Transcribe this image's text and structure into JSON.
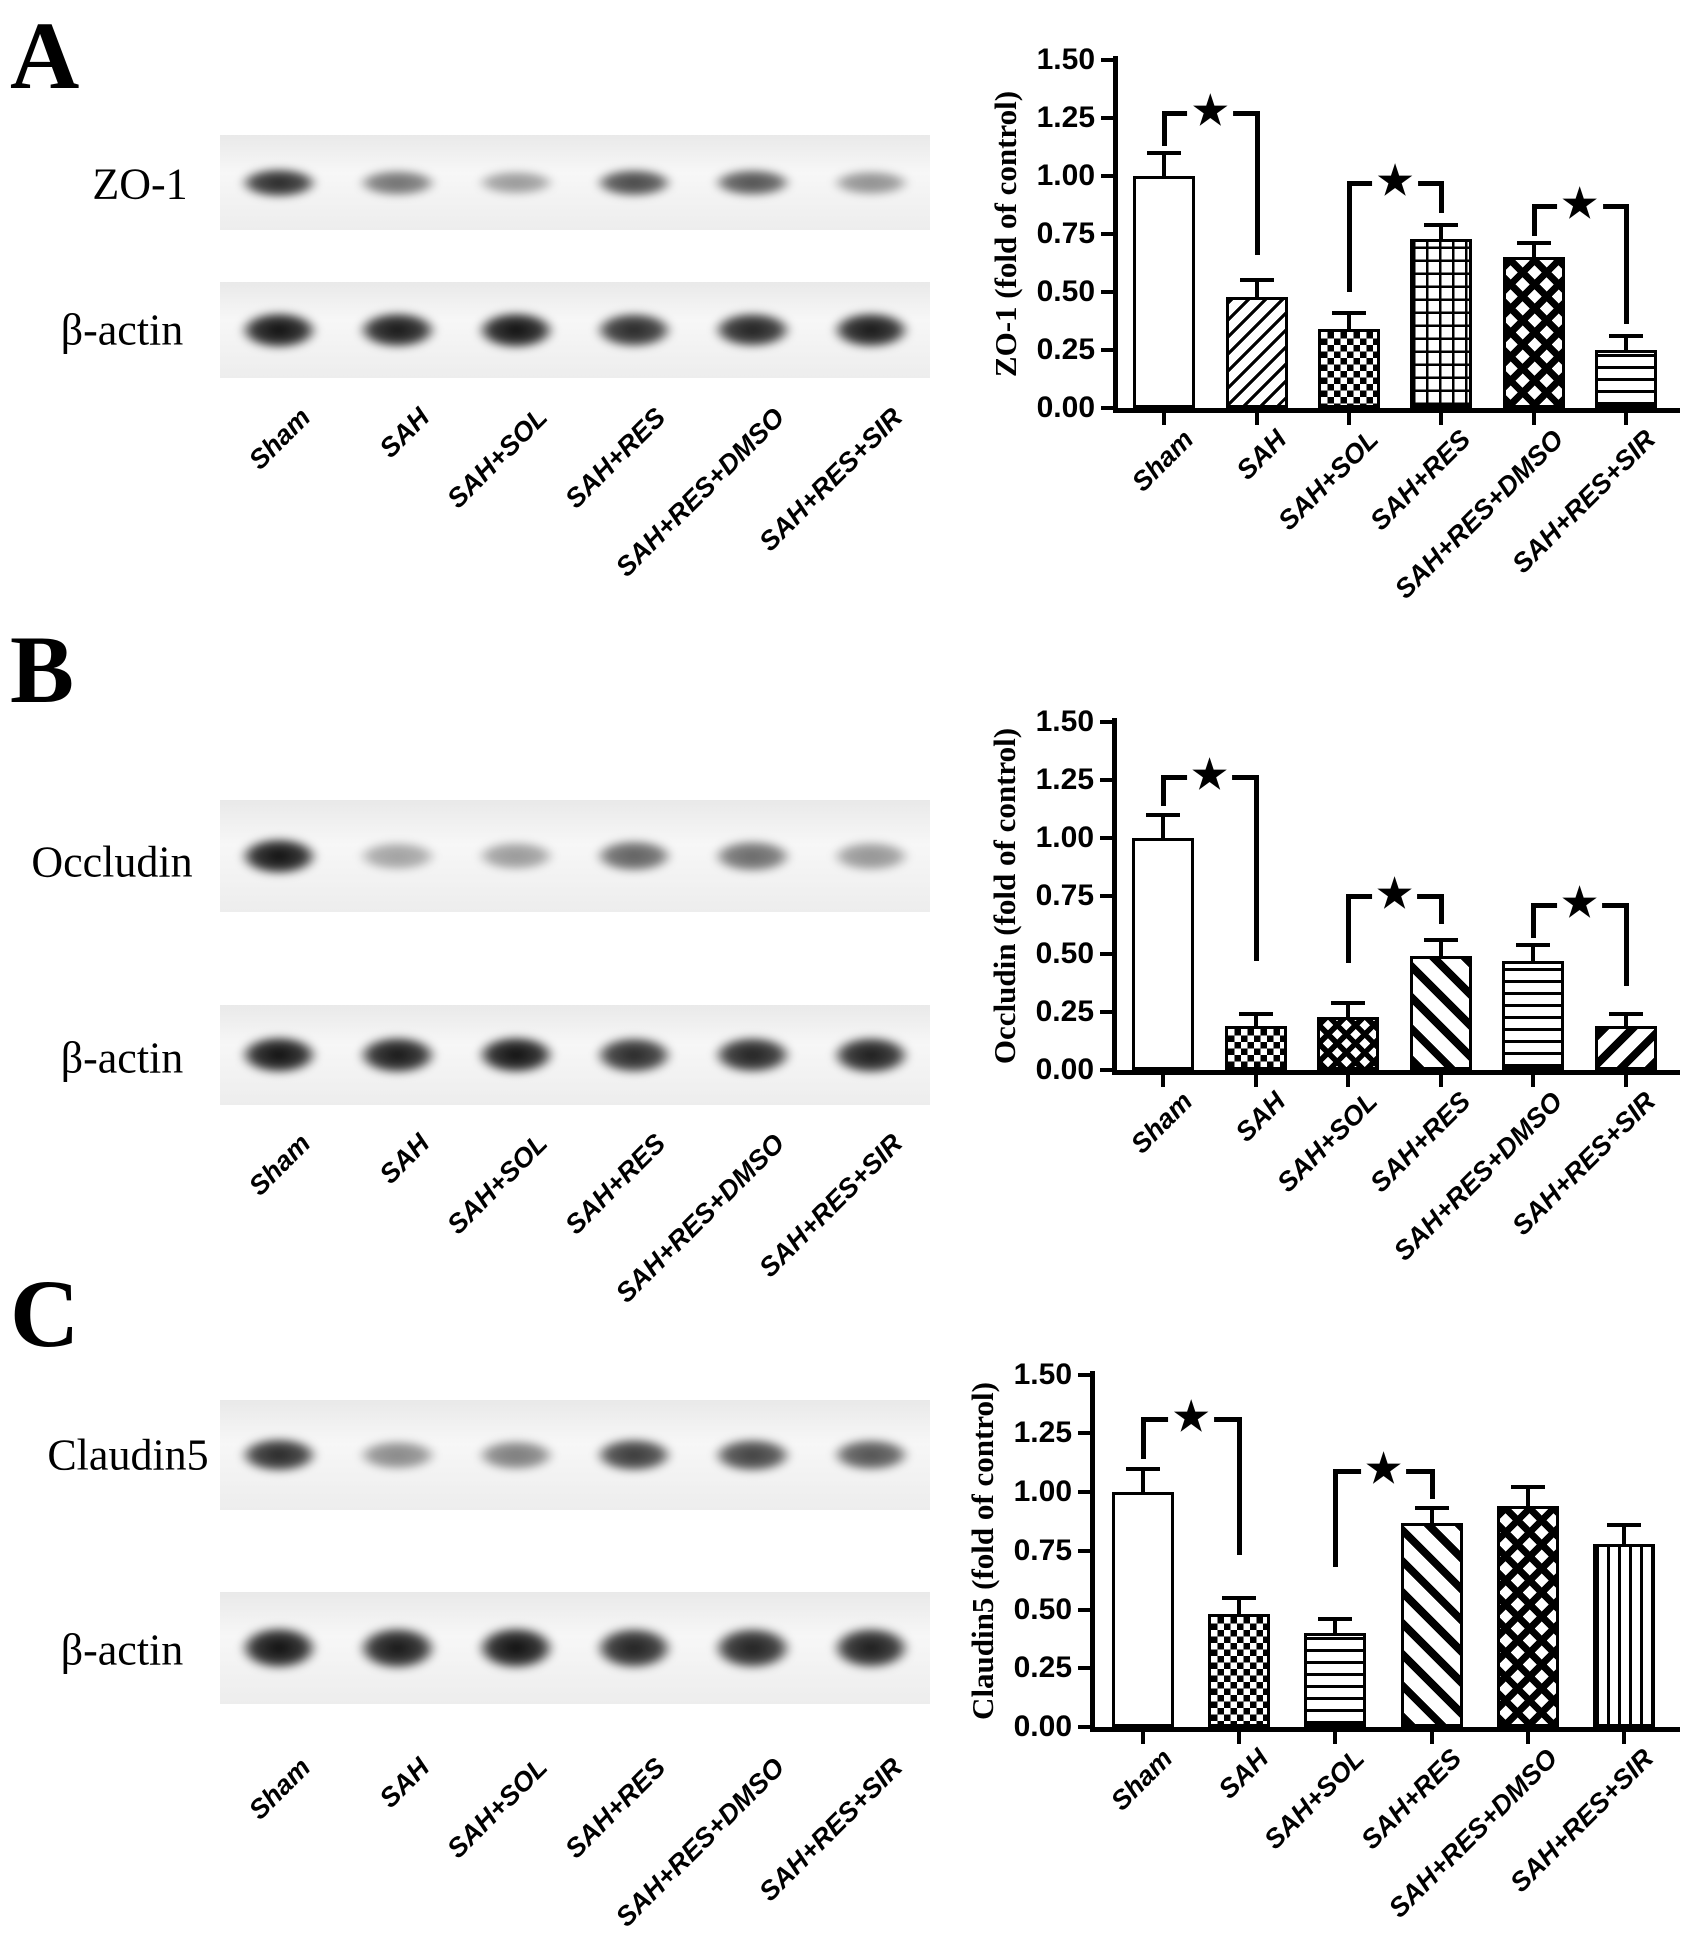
{
  "figure": {
    "ink_color": "#000000",
    "blot_bg_color": "#ededed",
    "panels": [
      {
        "letter": "A",
        "protein": "ZO-1",
        "blot_rows": [
          {
            "label": "ZO-1",
            "band_intensities": [
              0.85,
              0.55,
              0.38,
              0.72,
              0.68,
              0.42
            ]
          },
          {
            "label": "β-actin",
            "band_intensities": [
              0.95,
              0.92,
              0.95,
              0.85,
              0.88,
              0.92
            ]
          }
        ],
        "lane_labels": [
          "Sham",
          "SAH",
          "SAH+SOL",
          "SAH+RES",
          "SAH+RES+DMSO",
          "SAH+RES+SIR"
        ]
      },
      {
        "letter": "B",
        "protein": "Occludin",
        "blot_rows": [
          {
            "label": "Occludin",
            "band_intensities": [
              0.95,
              0.35,
              0.38,
              0.62,
              0.58,
              0.4
            ]
          },
          {
            "label": "β-actin",
            "band_intensities": [
              0.95,
              0.92,
              0.95,
              0.85,
              0.88,
              0.9
            ]
          }
        ],
        "lane_labels": [
          "Sham",
          "SAH",
          "SAH+SOL",
          "SAH+RES",
          "SAH+RES+DMSO",
          "SAH+RES+SIR"
        ]
      },
      {
        "letter": "C",
        "protein": "Claudin5",
        "blot_rows": [
          {
            "label": "Claudin5",
            "band_intensities": [
              0.85,
              0.45,
              0.5,
              0.78,
              0.75,
              0.68
            ]
          },
          {
            "label": "β-actin",
            "band_intensities": [
              0.95,
              0.92,
              0.95,
              0.88,
              0.88,
              0.9
            ]
          }
        ],
        "lane_labels": [
          "Sham",
          "SAH",
          "SAH+SOL",
          "SAH+RES",
          "SAH+RES+DMSO",
          "SAH+RES+SIR"
        ]
      }
    ]
  },
  "chart_data": [
    {
      "panel": "A",
      "type": "bar",
      "title": "",
      "xlabel": "",
      "ylabel": "ZO-1 (fold of control)",
      "categories": [
        "Sham",
        "SAH",
        "SAH+SOL",
        "SAH+RES",
        "SAH+RES+DMSO",
        "SAH+RES+SIR"
      ],
      "values": [
        1.0,
        0.48,
        0.34,
        0.73,
        0.65,
        0.25
      ],
      "errors": [
        0.1,
        0.07,
        0.07,
        0.06,
        0.06,
        0.06
      ],
      "patterns": [
        "plain",
        "hatch-fwd-thin",
        "checker",
        "grid",
        "diamond",
        "lines-h"
      ],
      "ylim": [
        0,
        1.5
      ],
      "yticks": [
        "0.00",
        "0.25",
        "0.50",
        "0.75",
        "1.00",
        "1.25",
        "1.50"
      ],
      "grid": false,
      "legend": "none",
      "significance": [
        {
          "pair": [
            0,
            1
          ],
          "label": "★",
          "bar_y": 1.28,
          "left_drop_to": 1.13,
          "right_drop_to": 0.66
        },
        {
          "pair": [
            2,
            3
          ],
          "label": "★",
          "bar_y": 0.98,
          "left_drop_to": 0.5,
          "right_drop_to": 0.84
        },
        {
          "pair": [
            4,
            5
          ],
          "label": "★",
          "bar_y": 0.88,
          "left_drop_to": 0.74,
          "right_drop_to": 0.36
        }
      ]
    },
    {
      "panel": "B",
      "type": "bar",
      "title": "",
      "xlabel": "",
      "ylabel": "Occludin (fold of control)",
      "categories": [
        "Sham",
        "SAH",
        "SAH+SOL",
        "SAH+RES",
        "SAH+RES+DMSO",
        "SAH+RES+SIR"
      ],
      "values": [
        1.0,
        0.19,
        0.23,
        0.49,
        0.47,
        0.19
      ],
      "errors": [
        0.1,
        0.05,
        0.06,
        0.07,
        0.07,
        0.05
      ],
      "patterns": [
        "plain",
        "checker",
        "diamond-sm",
        "hatch-back-bold",
        "lines-h",
        "hatch-fwd-bold"
      ],
      "ylim": [
        0,
        1.5
      ],
      "yticks": [
        "0.00",
        "0.25",
        "0.50",
        "0.75",
        "1.00",
        "1.25",
        "1.50"
      ],
      "grid": false,
      "legend": "none",
      "significance": [
        {
          "pair": [
            0,
            1
          ],
          "label": "★",
          "bar_y": 1.27,
          "left_drop_to": 1.14,
          "right_drop_to": 0.47
        },
        {
          "pair": [
            2,
            3
          ],
          "label": "★",
          "bar_y": 0.76,
          "left_drop_to": 0.46,
          "right_drop_to": 0.63
        },
        {
          "pair": [
            4,
            5
          ],
          "label": "★",
          "bar_y": 0.72,
          "left_drop_to": 0.57,
          "right_drop_to": 0.36
        }
      ]
    },
    {
      "panel": "C",
      "type": "bar",
      "title": "",
      "xlabel": "",
      "ylabel": "Claudin5 (fold of control)",
      "categories": [
        "Sham",
        "SAH",
        "SAH+SOL",
        "SAH+RES",
        "SAH+RES+DMSO",
        "SAH+RES+SIR"
      ],
      "values": [
        1.0,
        0.48,
        0.4,
        0.87,
        0.94,
        0.78
      ],
      "errors": [
        0.1,
        0.07,
        0.06,
        0.06,
        0.08,
        0.08
      ],
      "patterns": [
        "plain",
        "checker",
        "lines-h",
        "hatch-back-bold",
        "diamond",
        "lines-v"
      ],
      "ylim": [
        0,
        1.5
      ],
      "yticks": [
        "0.00",
        "0.25",
        "0.50",
        "0.75",
        "1.00",
        "1.25",
        "1.50"
      ],
      "grid": false,
      "legend": "none",
      "significance": [
        {
          "pair": [
            0,
            1
          ],
          "label": "★",
          "bar_y": 1.32,
          "left_drop_to": 1.14,
          "right_drop_to": 0.73
        },
        {
          "pair": [
            2,
            3
          ],
          "label": "★",
          "bar_y": 1.1,
          "left_drop_to": 0.68,
          "right_drop_to": 0.97
        }
      ]
    }
  ]
}
